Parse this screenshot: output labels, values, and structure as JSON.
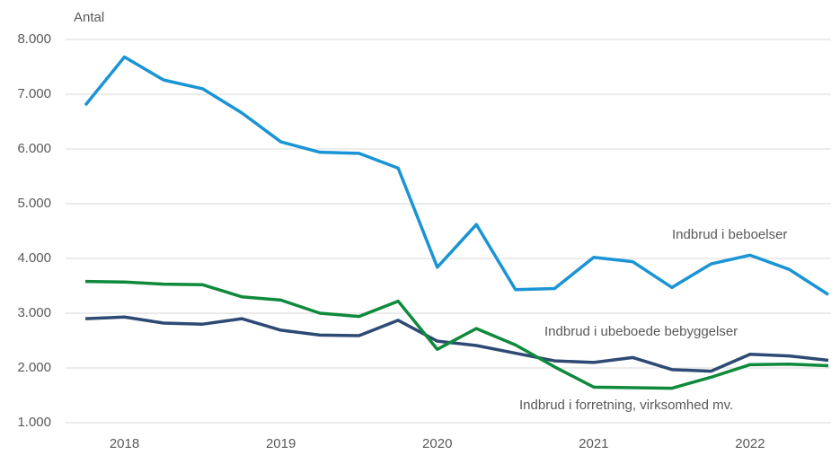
{
  "chart_data": {
    "type": "line",
    "y_axis_label": "Antal",
    "categories": [
      null,
      "2018",
      null,
      null,
      null,
      "2019",
      null,
      null,
      null,
      "2020",
      null,
      null,
      null,
      "2021",
      null,
      null,
      null,
      "2022",
      null,
      null
    ],
    "series": [
      {
        "name": "Indbrud i beboelser",
        "color": "#1a94d4",
        "values": [
          6800,
          7680,
          7260,
          7100,
          6660,
          6130,
          5940,
          5920,
          5650,
          3840,
          4620,
          3430,
          3450,
          4020,
          3940,
          3470,
          3900,
          4060,
          3800,
          3340
        ]
      },
      {
        "name": "Indbrud i ubeboede bebyggelser",
        "color": "#2e4a74",
        "values": [
          2900,
          2930,
          2820,
          2800,
          2900,
          2690,
          2600,
          2590,
          2870,
          2490,
          2410,
          2270,
          2130,
          2100,
          2190,
          1970,
          1940,
          2250,
          2220,
          2140
        ]
      },
      {
        "name": "Indbrud i forretning, virksomhed mv.",
        "color": "#0f8a3c",
        "values": [
          3580,
          3570,
          3530,
          3520,
          3300,
          3240,
          3000,
          2940,
          3220,
          2340,
          2720,
          2420,
          2020,
          1650,
          1640,
          1630,
          1830,
          2060,
          2070,
          2040
        ]
      }
    ],
    "ylim": [
      1000,
      8000
    ],
    "yticks": [
      {
        "value": 1000,
        "label": "1.000"
      },
      {
        "value": 2000,
        "label": "2.000"
      },
      {
        "value": 3000,
        "label": "3.000"
      },
      {
        "value": 4000,
        "label": "4.000"
      },
      {
        "value": 5000,
        "label": "5.000"
      },
      {
        "value": 6000,
        "label": "6.000"
      },
      {
        "value": 7000,
        "label": "7.000"
      },
      {
        "value": 8000,
        "label": "8.000"
      }
    ],
    "grid": true
  }
}
